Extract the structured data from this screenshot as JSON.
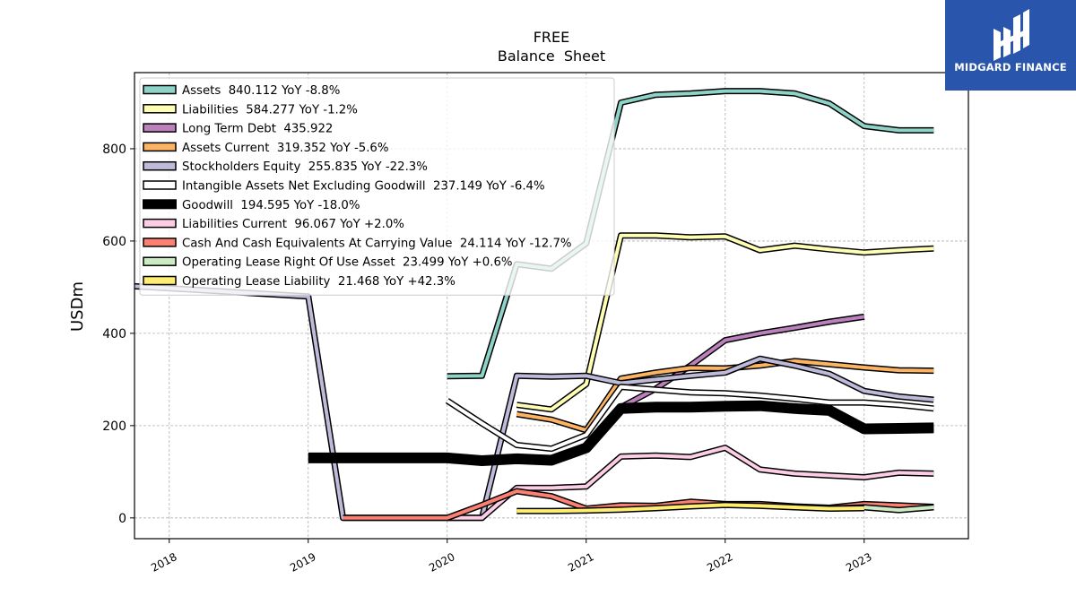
{
  "brand": {
    "name": "MIDGARD FINANCE",
    "bg_color": "#2a55ad"
  },
  "chart_data": {
    "type": "line",
    "title": "FREE",
    "subtitle": "Balance  Sheet",
    "ylabel": "USDm",
    "xlabel": "",
    "xlim": [
      2017.75,
      2023.75
    ],
    "ylim": [
      -45,
      965
    ],
    "x_ticks": [
      2018,
      2019,
      2020,
      2021,
      2022,
      2023
    ],
    "x_tick_labels": [
      "2018",
      "2019",
      "2020",
      "2021",
      "2022",
      "2023"
    ],
    "y_ticks": [
      0,
      200,
      400,
      600,
      800
    ],
    "y_tick_labels": [
      "0",
      "200",
      "400",
      "600",
      "800"
    ],
    "grid": true,
    "legend_position": "upper-left",
    "series": [
      {
        "name": "Assets",
        "label": "Assets  840.112 YoY -8.8%",
        "color": "#8dd3c7",
        "width": 4,
        "x": [
          2020.0,
          2020.25,
          2020.5,
          2020.75,
          2021.0,
          2021.25,
          2021.5,
          2021.75,
          2022.0,
          2022.25,
          2022.5,
          2022.75,
          2023.0,
          2023.25,
          2023.5
        ],
        "y": [
          307,
          308,
          550,
          540,
          595,
          900,
          917,
          920,
          925,
          925,
          920,
          898,
          849,
          840,
          840
        ]
      },
      {
        "name": "Liabilities",
        "label": "Liabilities  584.277 YoY -1.2%",
        "color": "#ffffb3",
        "width": 4,
        "x": [
          2020.5,
          2020.75,
          2021.0,
          2021.25,
          2021.5,
          2021.75,
          2022.0,
          2022.25,
          2022.5,
          2022.75,
          2023.0,
          2023.25,
          2023.5
        ],
        "y": [
          245,
          235,
          290,
          612,
          612,
          608,
          610,
          580,
          590,
          582,
          575,
          580,
          584
        ]
      },
      {
        "name": "Long Term Debt",
        "label": "Long Term Debt  435.922",
        "color": "#bc80bd",
        "width": 4,
        "x": [
          2021.25,
          2021.5,
          2021.75,
          2022.0,
          2022.25,
          2022.5,
          2022.75,
          2023.0
        ],
        "y": [
          240,
          280,
          330,
          385,
          400,
          412,
          425,
          436
        ]
      },
      {
        "name": "Assets Current",
        "label": "Assets Current  319.352 YoY -5.6%",
        "color": "#fdb462",
        "width": 4,
        "x": [
          2020.5,
          2020.75,
          2021.0,
          2021.25,
          2021.5,
          2021.75,
          2022.0,
          2022.25,
          2022.5,
          2022.75,
          2023.0,
          2023.25,
          2023.5
        ],
        "y": [
          225,
          213,
          190,
          302,
          315,
          325,
          324,
          330,
          340,
          333,
          326,
          320,
          319
        ]
      },
      {
        "name": "Stockholders Equity",
        "label": "Stockholders Equity  255.835 YoY -22.3%",
        "color": "#bebada",
        "width": 4,
        "x": [
          2017.75,
          2019.0,
          2019.25,
          2019.5,
          2019.75,
          2020.0,
          2020.25,
          2020.5,
          2020.75,
          2021.0,
          2021.25,
          2021.5,
          2021.75,
          2022.0,
          2022.25,
          2022.5,
          2022.75,
          2023.0,
          2023.25,
          2023.5
        ],
        "y": [
          502,
          480,
          0,
          0,
          0,
          0,
          0,
          308,
          306,
          308,
          292,
          300,
          308,
          315,
          345,
          330,
          312,
          275,
          263,
          256
        ]
      },
      {
        "name": "Intangible Assets Net Excluding Goodwill",
        "label": "Intangible Assets Net Excluding Goodwill  237.149 YoY -6.4%",
        "color": "#ffffff",
        "width": 4,
        "x": [
          2020.0,
          2020.25,
          2020.5,
          2020.75,
          2021.0,
          2021.25,
          2021.5,
          2021.75,
          2022.0,
          2022.25,
          2022.5,
          2022.75,
          2023.0,
          2023.25,
          2023.5
        ],
        "y": [
          254,
          205,
          158,
          150,
          180,
          284,
          278,
          272,
          270,
          265,
          258,
          250,
          250,
          245,
          237
        ]
      },
      {
        "name": "Goodwill",
        "label": "Goodwill  194.595 YoY -18.0%",
        "color": "#000000",
        "width": 9,
        "x": [
          2019.0,
          2020.0,
          2020.25,
          2020.5,
          2020.75,
          2021.0,
          2021.25,
          2021.5,
          2021.75,
          2022.0,
          2022.25,
          2022.5,
          2022.75,
          2023.0,
          2023.25,
          2023.5
        ],
        "y": [
          130,
          130,
          124,
          128,
          125,
          152,
          237,
          240,
          240,
          242,
          243,
          237,
          233,
          193,
          194,
          195
        ]
      },
      {
        "name": "Liabilities Current",
        "label": "Liabilities Current  96.067 YoY +2.0%",
        "color": "#fccde5",
        "width": 4,
        "x": [
          2020.0,
          2020.25,
          2020.5,
          2020.75,
          2021.0,
          2021.25,
          2021.5,
          2021.75,
          2022.0,
          2022.25,
          2022.5,
          2022.75,
          2023.0,
          2023.25,
          2023.5
        ],
        "y": [
          0,
          0,
          65,
          65,
          68,
          133,
          135,
          132,
          152,
          105,
          96,
          92,
          88,
          98,
          96
        ]
      },
      {
        "name": "Cash And Cash Equivalents At Carrying Value",
        "label": "Cash And Cash Equivalents At Carrying Value  24.114 YoY -12.7%",
        "color": "#fb8072",
        "width": 4,
        "x": [
          2019.25,
          2019.5,
          2019.75,
          2020.0,
          2020.25,
          2020.5,
          2020.75,
          2021.0,
          2021.25,
          2021.5,
          2021.75,
          2022.0,
          2022.25,
          2022.5,
          2022.75,
          2023.0,
          2023.25,
          2023.5
        ],
        "y": [
          0,
          0,
          0,
          0,
          28,
          58,
          47,
          20,
          27,
          26,
          35,
          30,
          30,
          25,
          22,
          30,
          27,
          24
        ]
      },
      {
        "name": "Operating Lease Right Of Use Asset",
        "label": "Operating Lease Right Of Use Asset  23.499 YoY +0.6%",
        "color": "#ccebc5",
        "width": 4,
        "x": [
          2022.75,
          2023.0,
          2023.25,
          2023.5
        ],
        "y": [
          20,
          23,
          17,
          23
        ]
      },
      {
        "name": "Operating Lease Liability",
        "label": "Operating Lease Liability  21.468 YoY +42.3%",
        "color": "#ffed6f",
        "width": 4,
        "x": [
          2020.5,
          2020.75,
          2021.0,
          2021.25,
          2021.5,
          2021.75,
          2022.0,
          2022.25,
          2022.5,
          2022.75,
          2023.0
        ],
        "y": [
          15,
          15,
          16,
          18,
          21,
          25,
          28,
          26,
          23,
          20,
          21
        ]
      }
    ]
  }
}
